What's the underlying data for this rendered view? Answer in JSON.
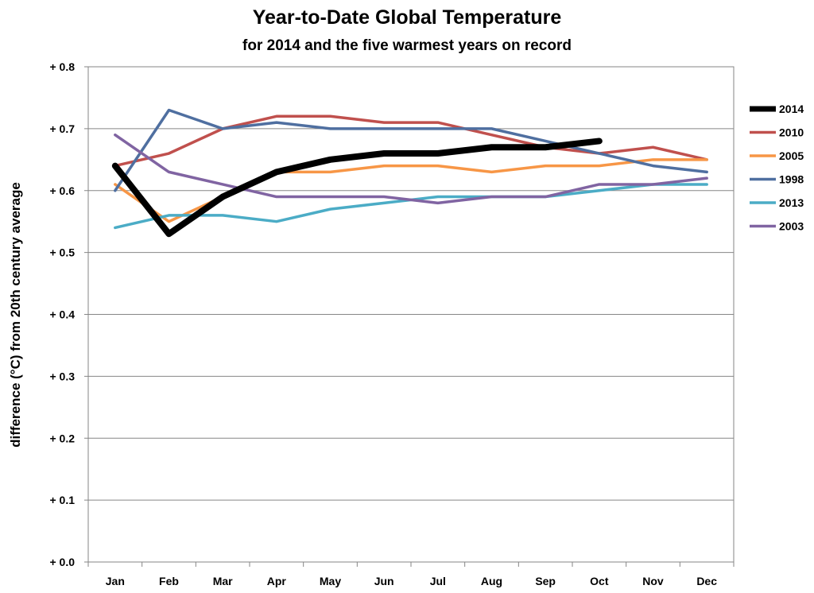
{
  "chart_data": {
    "type": "line",
    "title": "Year-to-Date Global Temperature",
    "subtitle": "for 2014 and the five warmest years on record",
    "xlabel": "",
    "ylabel": "difference (°C)  from 20th century average",
    "categories": [
      "Jan",
      "Feb",
      "Mar",
      "Apr",
      "May",
      "Jun",
      "Jul",
      "Aug",
      "Sep",
      "Oct",
      "Nov",
      "Dec"
    ],
    "ylim": [
      0,
      0.8
    ],
    "yticks": [
      {
        "value": 0.0,
        "label": "+ 0.0"
      },
      {
        "value": 0.1,
        "label": "+ 0.1"
      },
      {
        "value": 0.2,
        "label": "+ 0.2"
      },
      {
        "value": 0.3,
        "label": "+ 0.3"
      },
      {
        "value": 0.4,
        "label": "+ 0.4"
      },
      {
        "value": 0.5,
        "label": "+ 0.5"
      },
      {
        "value": 0.6,
        "label": "+ 0.6"
      },
      {
        "value": 0.7,
        "label": "+ 0.7"
      },
      {
        "value": 0.8,
        "label": "+ 0.8"
      }
    ],
    "grid": "horizontal",
    "legend_position": "right",
    "series": [
      {
        "name": "2014",
        "color": "#000000",
        "emphasis": true,
        "values": [
          0.64,
          0.53,
          0.59,
          0.63,
          0.65,
          0.66,
          0.66,
          0.67,
          0.67,
          0.68,
          null,
          null
        ]
      },
      {
        "name": "2010",
        "color": "#c0504d",
        "values": [
          0.64,
          0.66,
          0.7,
          0.72,
          0.72,
          0.71,
          0.71,
          0.69,
          0.67,
          0.66,
          0.67,
          0.65
        ]
      },
      {
        "name": "2005",
        "color": "#f79646",
        "values": [
          0.61,
          0.55,
          0.59,
          0.63,
          0.63,
          0.64,
          0.64,
          0.63,
          0.64,
          0.64,
          0.65,
          0.65
        ]
      },
      {
        "name": "1998",
        "color": "#4f6fa0",
        "values": [
          0.6,
          0.73,
          0.7,
          0.71,
          0.7,
          0.7,
          0.7,
          0.7,
          0.68,
          0.66,
          0.64,
          0.63
        ]
      },
      {
        "name": "2013",
        "color": "#4bacc6",
        "values": [
          0.54,
          0.56,
          0.56,
          0.55,
          0.57,
          0.58,
          0.59,
          0.59,
          0.59,
          0.6,
          0.61,
          0.61
        ]
      },
      {
        "name": "2003",
        "color": "#8064a2",
        "values": [
          0.69,
          0.63,
          0.61,
          0.59,
          0.59,
          0.59,
          0.58,
          0.59,
          0.59,
          0.61,
          0.61,
          0.62
        ]
      }
    ]
  }
}
